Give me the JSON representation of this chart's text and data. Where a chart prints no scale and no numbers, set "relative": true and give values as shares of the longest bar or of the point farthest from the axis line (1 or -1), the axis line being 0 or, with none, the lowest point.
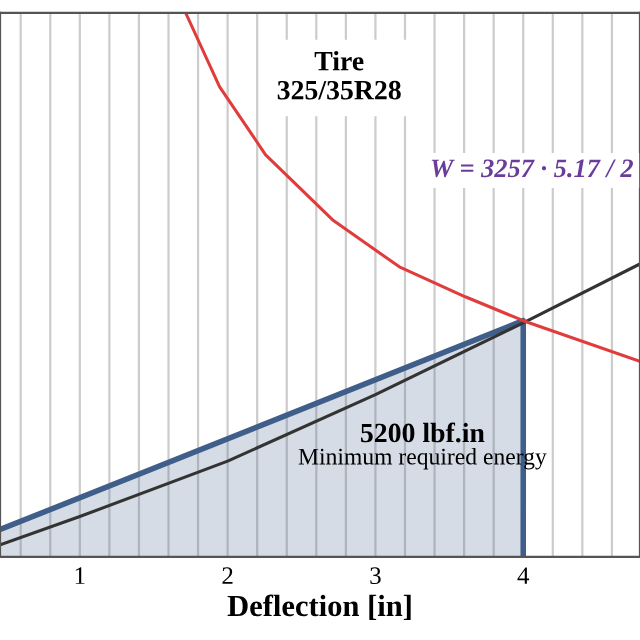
{
  "chart_data": {
    "type": "line",
    "relative": true,
    "xlabel": "Deflection [in]",
    "xlim": [
      0.46,
      4.79
    ],
    "xticks": [
      {
        "value": 0.6,
        "label": null
      },
      {
        "value": 0.8,
        "label": null
      },
      {
        "value": 1,
        "label": "1"
      },
      {
        "value": 1.2,
        "label": null
      },
      {
        "value": 1.4,
        "label": null
      },
      {
        "value": 1.6,
        "label": null
      },
      {
        "value": 1.8,
        "label": null
      },
      {
        "value": 2,
        "label": "2"
      },
      {
        "value": 2.2,
        "label": null
      },
      {
        "value": 2.4,
        "label": null
      },
      {
        "value": 2.6,
        "label": null
      },
      {
        "value": 2.8,
        "label": null
      },
      {
        "value": 3,
        "label": "3"
      },
      {
        "value": 3.2,
        "label": null
      },
      {
        "value": 3.4,
        "label": null
      },
      {
        "value": 3.6,
        "label": null
      },
      {
        "value": 3.8,
        "label": null
      },
      {
        "value": 4,
        "label": "4"
      },
      {
        "value": 4.2,
        "label": null
      },
      {
        "value": 4.4,
        "label": null
      },
      {
        "value": 4.6,
        "label": null
      }
    ],
    "grid": "x",
    "series": [
      {
        "type": "area",
        "color": "#3f5f8a",
        "x": [
          0.46,
          4
        ],
        "values": [
          0.05,
          0.434
        ]
      },
      {
        "color": "#333333",
        "x": [
          0.46,
          1,
          2,
          3,
          4,
          4.78
        ],
        "values": [
          0.022,
          0.074,
          0.176,
          0.298,
          0.43,
          0.537
        ]
      },
      {
        "color": "#e03c3c",
        "x": [
          1.716,
          1.946,
          2.257,
          2.716,
          3.162,
          3.608,
          4,
          4.784
        ],
        "values": [
          1.0,
          0.864,
          0.739,
          0.618,
          0.533,
          0.478,
          0.434,
          0.36
        ]
      }
    ],
    "annotations": [
      "Tire\n325/35R28",
      "W = 3257 · 5.17 / 2",
      "5200 lbf.in\nMinimum required energy"
    ]
  }
}
